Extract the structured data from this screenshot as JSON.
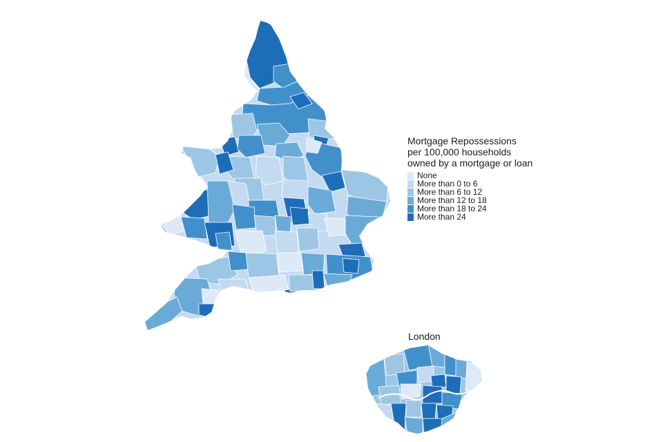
{
  "legend": {
    "title_lines": [
      "Mortgage Repossessions",
      "per 100,000 households",
      "owned by a mortgage or loan"
    ],
    "items": [
      {
        "label": "None",
        "color": "#dde9f6"
      },
      {
        "label": "More than 0 to 6",
        "color": "#c4daf0"
      },
      {
        "label": "More than 6 to 12",
        "color": "#9cc6e4"
      },
      {
        "label": "More than 12 to 18",
        "color": "#6aaad7"
      },
      {
        "label": "More than 18 to 24",
        "color": "#4190cb"
      },
      {
        "label": "More than 24",
        "color": "#1e6db8"
      }
    ]
  },
  "inset": {
    "title": "London"
  },
  "map": {
    "region": "England and Wales",
    "inset_region": "London",
    "fill_scale": [
      "#dde9f6",
      "#c4daf0",
      "#9cc6e4",
      "#6aaad7",
      "#4190cb",
      "#1e6db8"
    ],
    "border_color": "#ffffff"
  }
}
